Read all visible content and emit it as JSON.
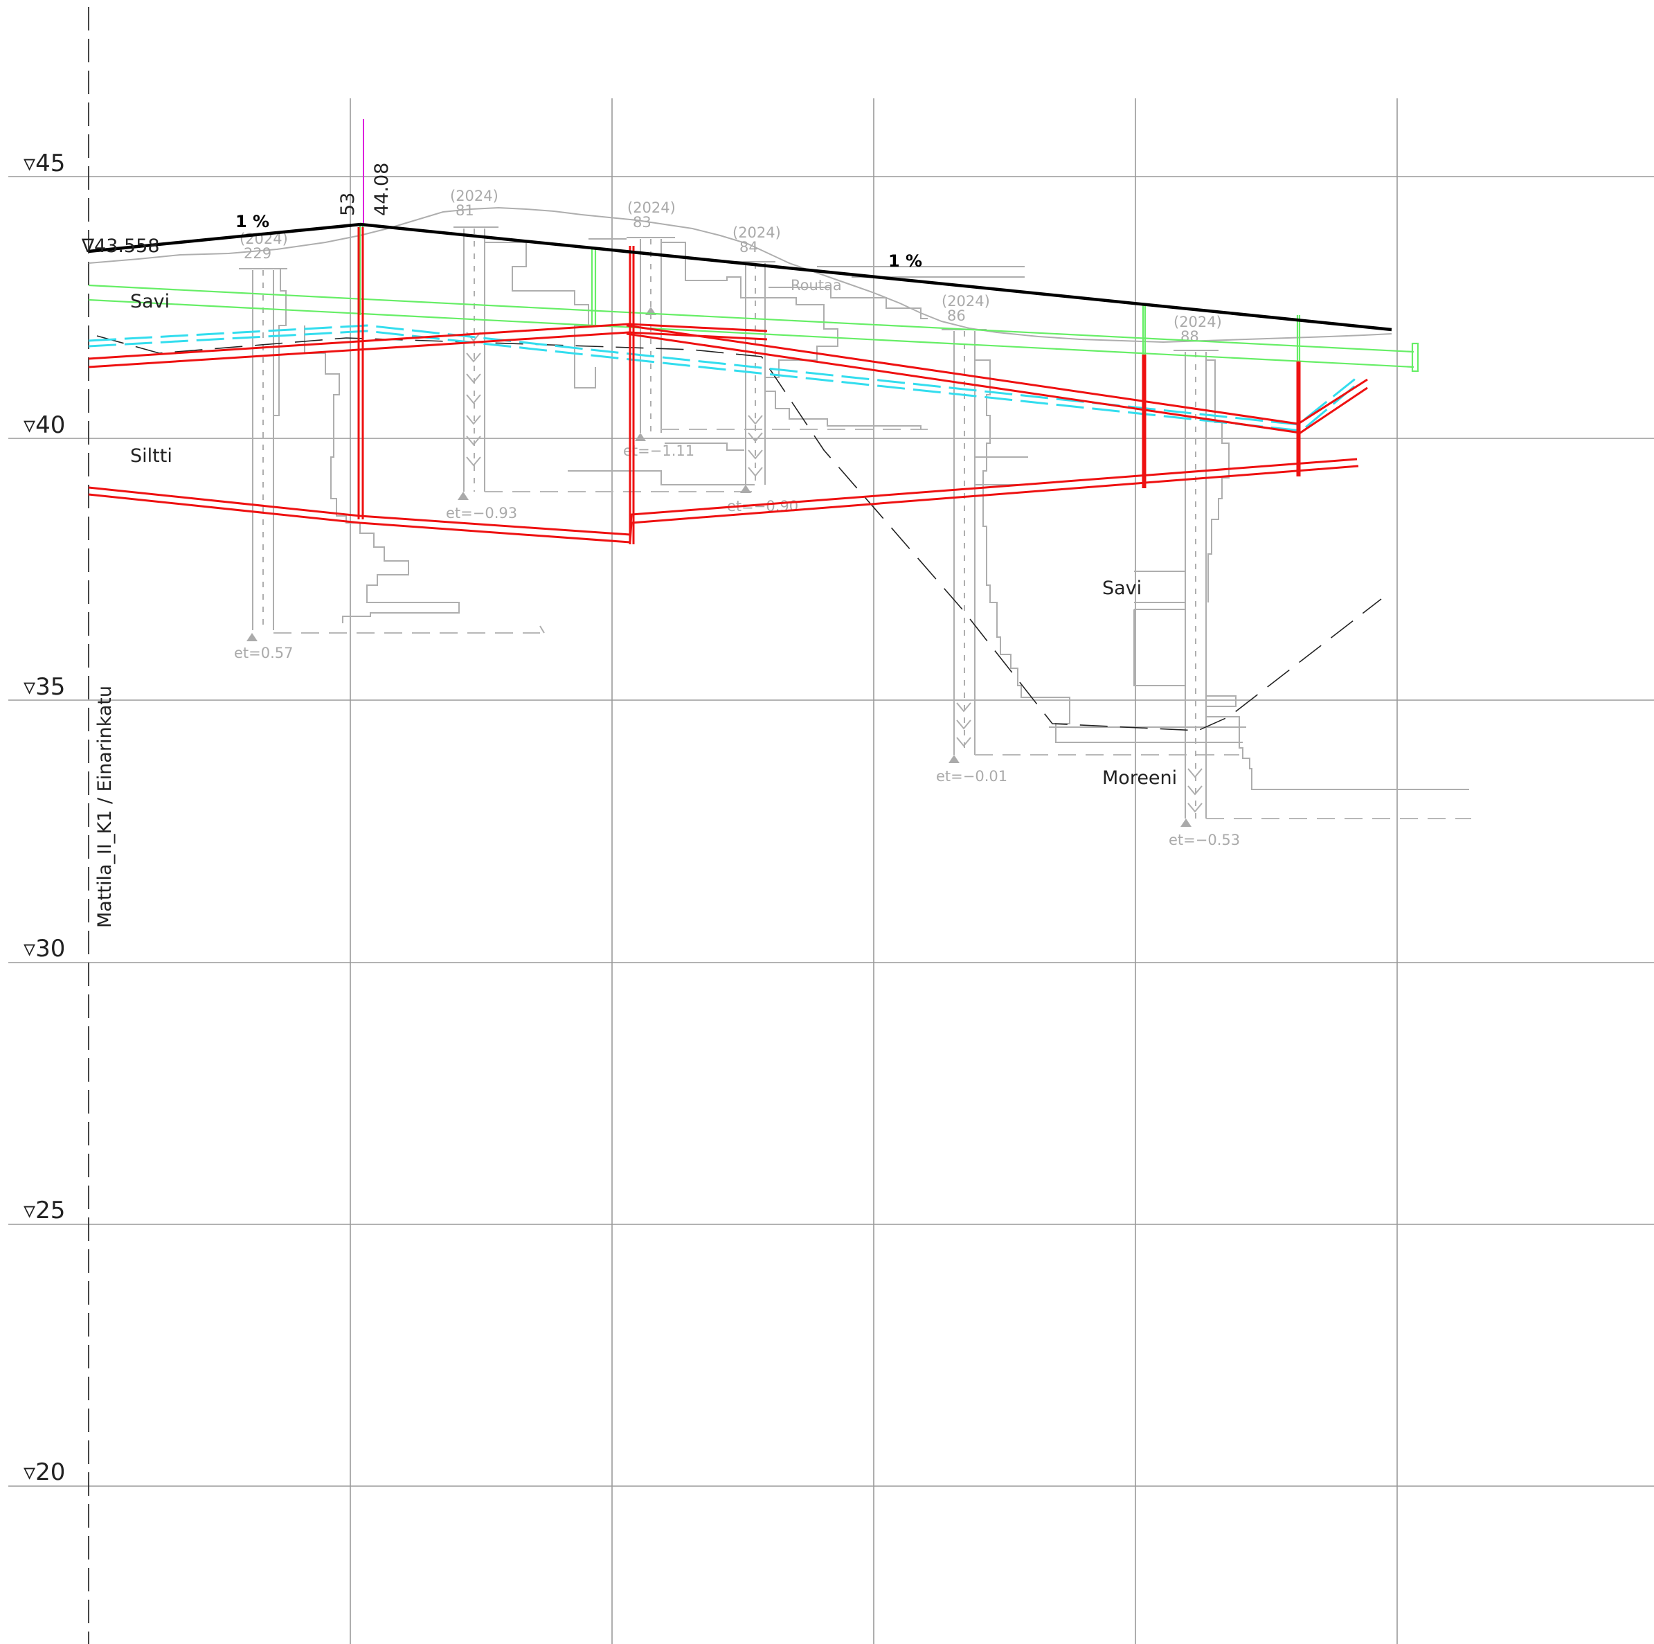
{
  "levels": [
    {
      "label": "▿45",
      "value": 45
    },
    {
      "label": "▿40",
      "value": 40
    },
    {
      "label": "▿35",
      "value": 35
    },
    {
      "label": "▿30",
      "value": 30
    },
    {
      "label": "▿25",
      "value": 25
    },
    {
      "label": "▿20",
      "value": 20
    }
  ],
  "section_label": "Mattila_II_K1  /  Einarinkatu",
  "start_level_label": "∇43.558",
  "breakpoint": {
    "point_label": "53",
    "level_label": "44.08"
  },
  "slopes": [
    "1 %",
    "1 %"
  ],
  "soil_labels": [
    "Savi",
    "Siltti",
    "Savi",
    "Moreeni",
    "Routaa"
  ],
  "boreholes": [
    {
      "year": "(2024)",
      "id": "229",
      "et": "et=0.57"
    },
    {
      "year": "(2024)",
      "id": "81",
      "et": "et=−0.93"
    },
    {
      "year": "(2024)",
      "id": "83",
      "et": "et=−1.11"
    },
    {
      "year": "(2024)",
      "id": "84",
      "et": "et=−0.90"
    },
    {
      "year": "(2024)",
      "id": "86",
      "et": "et=−0.01"
    },
    {
      "year": "(2024)",
      "id": "88",
      "et": "et=−0.53"
    }
  ],
  "colors": {
    "grid": "#9a9a9a",
    "design_line": "#000000",
    "pipes": "#ee1111",
    "green_pipe": "#66ee66",
    "cyan_pipe": "#33ddee",
    "soil_profile": "#aeaeae",
    "marker": "#dd22dd"
  }
}
